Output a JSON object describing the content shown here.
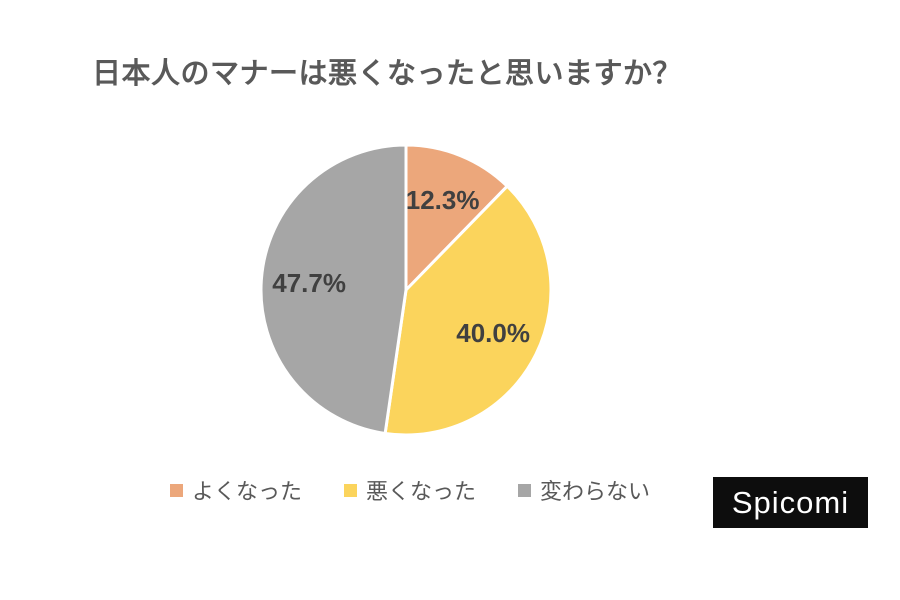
{
  "page": {
    "background": "#ffffff"
  },
  "title": {
    "text": "日本人のマナーは悪くなったと思いますか？",
    "color": "#595959"
  },
  "chart_data": {
    "type": "pie",
    "title": "日本人のマナーは悪くなったと思いますか？",
    "start_angle_deg": 0,
    "direction": "clockwise",
    "legend_position": "bottom",
    "label_color": "#404040",
    "legend_text_color": "#595959",
    "slice_border_color": "#ffffff",
    "slices": [
      {
        "label": "よくなった",
        "value": 12.3,
        "display": "12.3%",
        "color": "#eca77b"
      },
      {
        "label": "悪くなった",
        "value": 40.0,
        "display": "40.0%",
        "color": "#fbd45c"
      },
      {
        "label": "変わらない",
        "value": 47.7,
        "display": "47.7%",
        "color": "#a6a6a6"
      }
    ]
  },
  "branding": {
    "text": "Spicomi",
    "background": "#0d0d0d",
    "color": "#ffffff"
  }
}
